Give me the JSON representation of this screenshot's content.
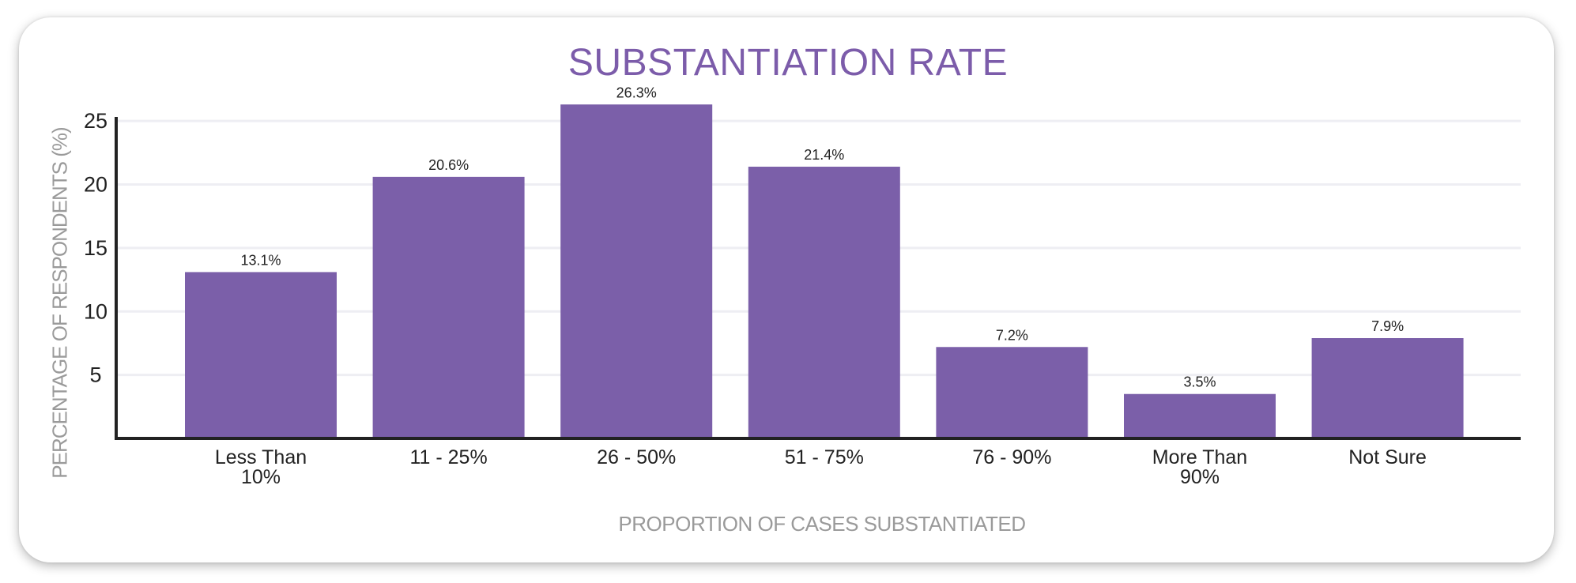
{
  "chart_data": {
    "type": "bar",
    "title": "SUBSTANTIATION RATE",
    "xlabel": "PROPORTION OF CASES SUBSTANTIATED",
    "ylabel": "PERCENTAGE OF RESPONDENTS (%)",
    "categories": [
      [
        "Less Than",
        "10%"
      ],
      [
        "11 - 25%"
      ],
      [
        "26 - 50%"
      ],
      [
        "51 - 75%"
      ],
      [
        "76 - 90%"
      ],
      [
        "More Than",
        "90%"
      ],
      [
        "Not Sure"
      ]
    ],
    "values": [
      13.1,
      20.6,
      26.3,
      21.4,
      7.2,
      3.5,
      7.9
    ],
    "value_labels": [
      "13.1%",
      "20.6%",
      "26.3%",
      "21.4%",
      "7.2%",
      "3.5%",
      "7.9%"
    ],
    "ylim": [
      0,
      27
    ],
    "yticks": [
      5,
      10,
      15,
      20,
      25
    ],
    "grid": true,
    "colors": {
      "bar": "#7b5fa9",
      "title": "#7c5caa",
      "axis_title": "#9a9a9a"
    }
  }
}
